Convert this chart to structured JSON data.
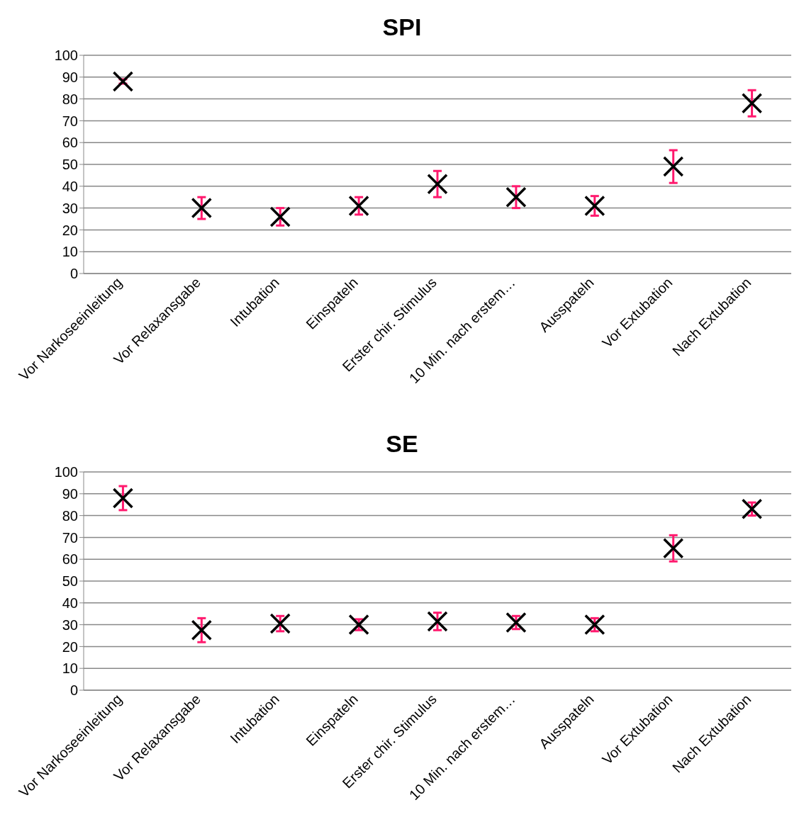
{
  "chart_data": [
    {
      "type": "scatter",
      "title": "SPI",
      "categories": [
        "Vor Narkoseeinleitung",
        "Vor Relaxansgabe",
        "Intubation",
        "Einspateln",
        "Erster chir. Stimulus",
        "10 Min. nach erstem…",
        "Ausspateln",
        "Vor Extubation",
        "Nach Extubation"
      ],
      "values": [
        88,
        30,
        26,
        31,
        41,
        35,
        31,
        49,
        78
      ],
      "errors": [
        1,
        5,
        4,
        4,
        6,
        5,
        4.5,
        7.5,
        6
      ],
      "color": "#000000",
      "marker": "cross",
      "ylim": [
        0,
        100
      ],
      "yticks": [
        0,
        10,
        20,
        30,
        40,
        50,
        60,
        70,
        80,
        90,
        100
      ],
      "grid": "y"
    },
    {
      "type": "scatter",
      "title": "SE",
      "categories": [
        "Vor Narkoseeinleitung",
        "Vor Relaxansgabe",
        "Intubation",
        "Einspateln",
        "Erster chir. Stimulus",
        "10 Min. nach erstem…",
        "Ausspateln",
        "Vor Extubation",
        "Nach Extubation"
      ],
      "values": [
        88,
        27.5,
        30.5,
        30,
        31.5,
        31,
        30,
        65,
        83
      ],
      "errors": [
        5.5,
        5.5,
        3.5,
        2.5,
        4,
        3,
        3,
        6,
        3
      ],
      "color": "#000000",
      "marker": "cross",
      "ylim": [
        0,
        100
      ],
      "yticks": [
        0,
        10,
        20,
        30,
        40,
        50,
        60,
        70,
        80,
        90,
        100
      ],
      "grid": "y"
    }
  ]
}
